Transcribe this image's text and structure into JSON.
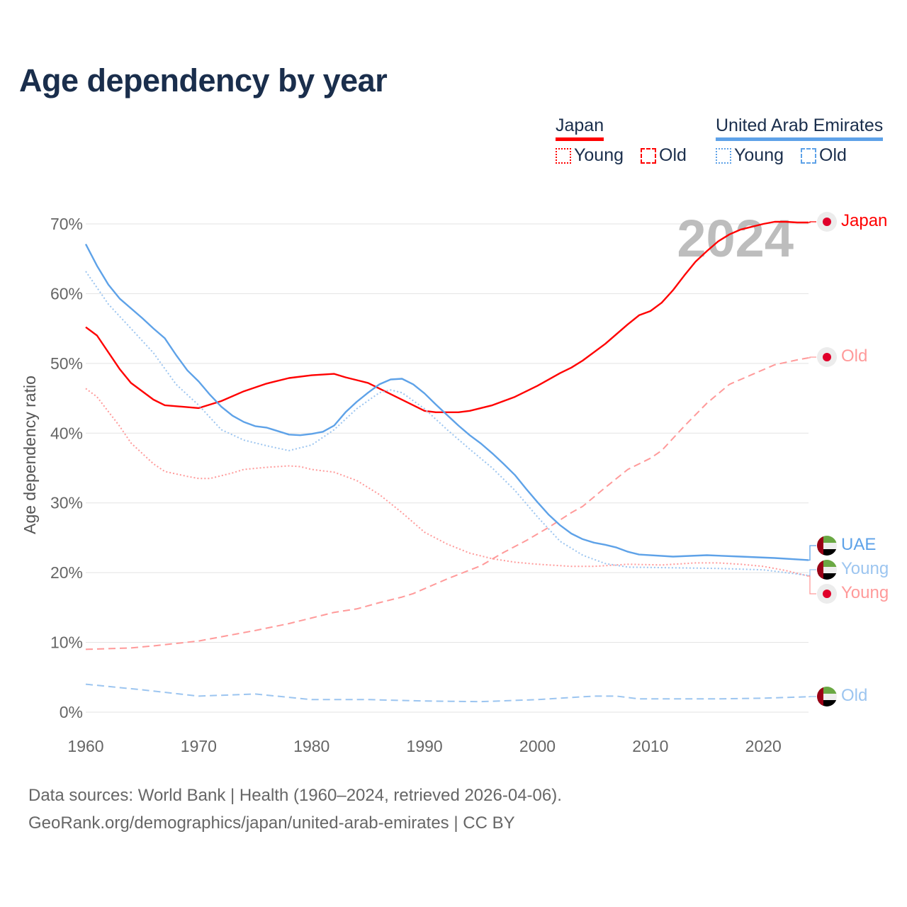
{
  "title": "Age dependency by year",
  "legend": {
    "groups": [
      {
        "name": "Japan",
        "color": "#ff0000",
        "items": [
          "Young",
          "Old"
        ]
      },
      {
        "name": "United Arab Emirates",
        "color": "#5ea2e8",
        "items": [
          "Young",
          "Old"
        ]
      }
    ]
  },
  "year_watermark": "2024",
  "footer": {
    "line1": "Data sources: World Bank | Health (1960–2024, retrieved 2026-04-06).",
    "line2": "GeoRank.org/demographics/japan/united-arab-emirates | CC BY"
  },
  "end_labels": [
    "Japan",
    "Old",
    "UAE",
    "Young",
    "Young",
    "Old"
  ],
  "chart_data": {
    "type": "line",
    "title": "Age dependency by year",
    "xlabel": "",
    "ylabel": "Age dependency ratio",
    "xlim": [
      1960,
      2024
    ],
    "ylim": [
      0,
      70
    ],
    "xticks": [
      "1960",
      "1970",
      "1980",
      "1990",
      "2000",
      "2010",
      "2020"
    ],
    "yticks": [
      "0%",
      "10%",
      "20%",
      "30%",
      "40%",
      "50%",
      "60%",
      "70%"
    ],
    "grid": true,
    "legend_position": "top-right",
    "series": [
      {
        "name": "Japan",
        "style": "solid",
        "color": "#ff0000",
        "x": [
          1960,
          1961,
          1963,
          1964,
          1966,
          1967,
          1970,
          1972,
          1974,
          1976,
          1978,
          1980,
          1982,
          1983,
          1985,
          1987,
          1989,
          1990,
          1991,
          1993,
          1994,
          1996,
          1998,
          2000,
          2002,
          2003,
          2004,
          2006,
          2008,
          2009,
          2010,
          2011,
          2012,
          2013,
          2014,
          2015,
          2016,
          2017,
          2018,
          2019,
          2020,
          2021,
          2022,
          2023,
          2024
        ],
        "y": [
          55.2,
          54,
          49.2,
          47.2,
          44.8,
          44,
          43.6,
          44.6,
          46,
          47.1,
          47.9,
          48.3,
          48.5,
          48,
          47.2,
          45.6,
          44,
          43.2,
          43,
          43,
          43.2,
          44,
          45.2,
          46.8,
          48.6,
          49.4,
          50.4,
          52.8,
          55.6,
          56.9,
          57.5,
          58.7,
          60.5,
          62.6,
          64.6,
          66.1,
          67.5,
          68.5,
          69.2,
          69.6,
          70,
          70.3,
          70.3,
          70.2,
          70.2
        ]
      },
      {
        "name": "Japan Young",
        "style": "dotted",
        "color": "#ff9a9a",
        "x": [
          1960,
          1961,
          1963,
          1964,
          1966,
          1967,
          1969,
          1970,
          1971,
          1973,
          1974,
          1976,
          1978,
          1979,
          1980,
          1982,
          1984,
          1986,
          1988,
          1990,
          1992,
          1994,
          1996,
          1998,
          2000,
          2003,
          2005,
          2008,
          2011,
          2014,
          2016,
          2018,
          2020,
          2022,
          2024
        ],
        "y": [
          46.4,
          45.2,
          41,
          38.6,
          35.6,
          34.5,
          33.8,
          33.5,
          33.5,
          34.3,
          34.8,
          35.1,
          35.3,
          35.2,
          34.8,
          34.4,
          33.2,
          31.2,
          28.6,
          25.8,
          24.1,
          22.8,
          22,
          21.5,
          21.2,
          20.9,
          20.9,
          21.2,
          21.1,
          21.4,
          21.4,
          21.2,
          20.9,
          20.3,
          19.5
        ]
      },
      {
        "name": "Japan Old",
        "style": "dashed",
        "color": "#ff9a9a",
        "x": [
          1960,
          1964,
          1966,
          1970,
          1975,
          1978,
          1980,
          1982,
          1984,
          1986,
          1988,
          1989,
          1990,
          1992,
          1995,
          1997,
          1999,
          2001,
          2003,
          2004,
          2006,
          2008,
          2010,
          2011,
          2013,
          2015,
          2017,
          2019,
          2021,
          2023,
          2024
        ],
        "y": [
          9,
          9.2,
          9.5,
          10.2,
          11.7,
          12.7,
          13.5,
          14.3,
          14.8,
          15.7,
          16.5,
          17,
          17.7,
          19.1,
          21,
          22.9,
          24.6,
          26.5,
          28.6,
          29.5,
          32.2,
          34.8,
          36.4,
          37.5,
          41,
          44.3,
          47,
          48.4,
          49.8,
          50.5,
          50.8
        ]
      },
      {
        "name": "UAE",
        "style": "solid",
        "color": "#5ea2e8",
        "x": [
          1960,
          1961,
          1962,
          1963,
          1965,
          1966,
          1967,
          1968,
          1969,
          1970,
          1971,
          1972,
          1973,
          1974,
          1975,
          1976,
          1977,
          1978,
          1979,
          1980,
          1981,
          1982,
          1983,
          1984,
          1985,
          1986,
          1987,
          1988,
          1989,
          1990,
          1991,
          1992,
          1993,
          1994,
          1995,
          1996,
          1997,
          1998,
          1999,
          2000,
          2001,
          2002,
          2003,
          2004,
          2005,
          2006,
          2007,
          2008,
          2009,
          2012,
          2015,
          2018,
          2021,
          2024
        ],
        "y": [
          67.1,
          64,
          61.3,
          59.3,
          56.5,
          55,
          53.6,
          51.2,
          49,
          47.4,
          45.5,
          43.8,
          42.5,
          41.6,
          41,
          40.8,
          40.3,
          39.8,
          39.7,
          39.9,
          40.2,
          41.1,
          43,
          44.5,
          45.8,
          47,
          47.7,
          47.8,
          47,
          45.7,
          44.1,
          42.6,
          41.1,
          39.7,
          38.5,
          37.1,
          35.6,
          34,
          32,
          30.1,
          28.3,
          26.8,
          25.6,
          24.8,
          24.3,
          24,
          23.6,
          23,
          22.6,
          22.3,
          22.5,
          22.3,
          22.1,
          21.8
        ]
      },
      {
        "name": "UAE Young",
        "style": "dotted",
        "color": "#9cc5f0",
        "x": [
          1960,
          1962,
          1964,
          1966,
          1968,
          1970,
          1972,
          1974,
          1976,
          1978,
          1980,
          1982,
          1984,
          1986,
          1987,
          1988,
          1990,
          1992,
          1994,
          1996,
          1998,
          2000,
          2002,
          2004,
          2006,
          2008,
          2012,
          2016,
          2020,
          2024
        ],
        "y": [
          63.2,
          58.5,
          55,
          51.5,
          47,
          44,
          40.5,
          39,
          38.2,
          37.5,
          38.3,
          40.5,
          43.5,
          45.8,
          46.2,
          45.8,
          43.5,
          40.5,
          37.7,
          35,
          31.8,
          28,
          24.5,
          22.5,
          21.3,
          20.8,
          20.7,
          20.6,
          20.4,
          19.6
        ]
      },
      {
        "name": "UAE Old",
        "style": "dashed",
        "color": "#9cc5f0",
        "x": [
          1960,
          1965,
          1970,
          1975,
          1980,
          1985,
          1990,
          1995,
          2000,
          2005,
          2007,
          2009,
          2012,
          2016,
          2020,
          2024
        ],
        "y": [
          4,
          3.2,
          2.3,
          2.6,
          1.8,
          1.8,
          1.6,
          1.5,
          1.8,
          2.3,
          2.3,
          1.9,
          1.9,
          1.9,
          2,
          2.2
        ]
      }
    ]
  }
}
